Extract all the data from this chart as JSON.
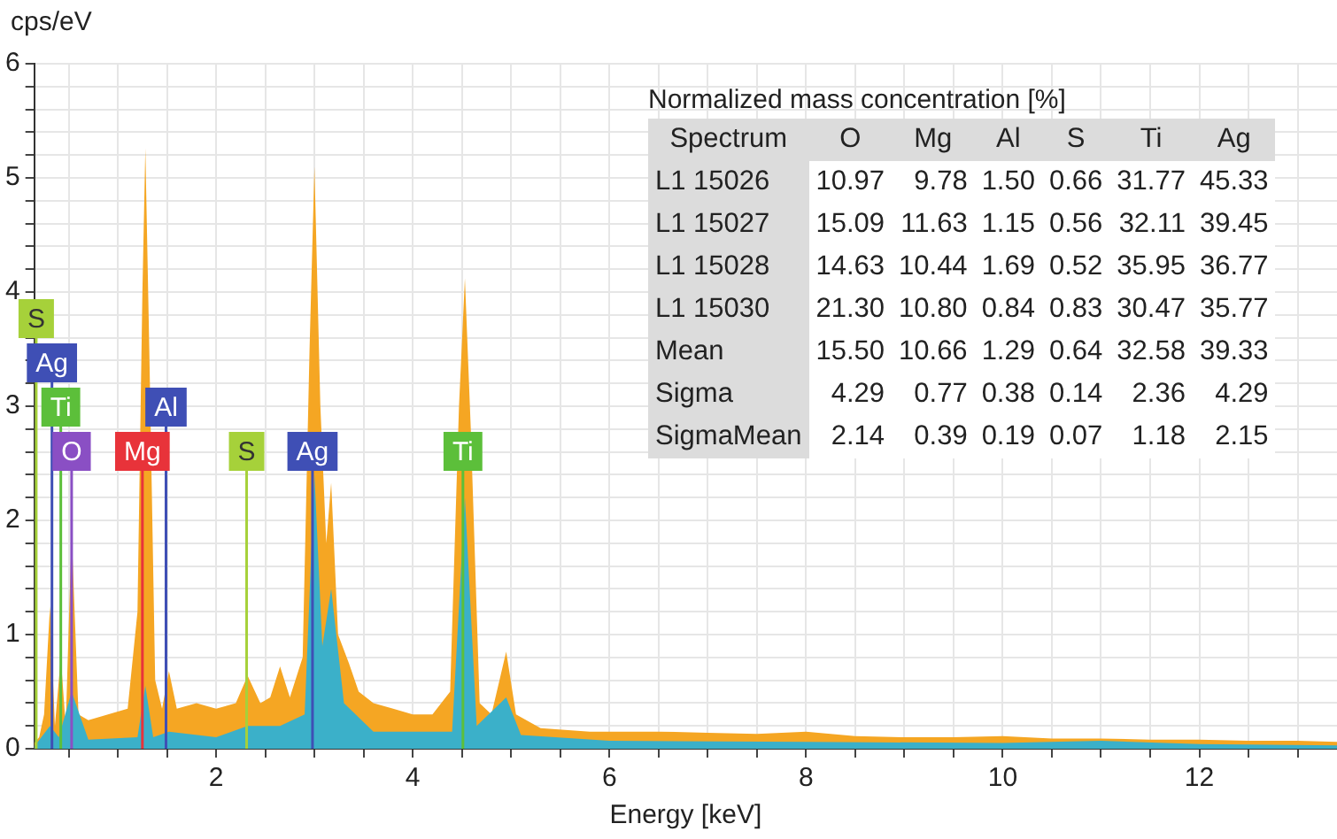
{
  "chart_data": [
    {
      "type": "area",
      "xlabel": "Energy [keV]",
      "ylabel": "cps/eV",
      "grid": true,
      "legend": false,
      "xlim": [
        0.15,
        13.4
      ],
      "ylim": [
        0,
        6
      ],
      "xticks": [
        {
          "value": 0.5,
          "label": null
        },
        {
          "value": 1,
          "label": null
        },
        {
          "value": 1.5,
          "label": null
        },
        2,
        {
          "value": 2.5,
          "label": null
        },
        {
          "value": 3,
          "label": null
        },
        {
          "value": 3.5,
          "label": null
        },
        4,
        {
          "value": 4.5,
          "label": null
        },
        {
          "value": 5,
          "label": null
        },
        {
          "value": 5.5,
          "label": null
        },
        6,
        {
          "value": 6.5,
          "label": null
        },
        {
          "value": 7,
          "label": null
        },
        {
          "value": 7.5,
          "label": null
        },
        8,
        {
          "value": 8.5,
          "label": null
        },
        {
          "value": 9,
          "label": null
        },
        {
          "value": 9.5,
          "label": null
        },
        10,
        {
          "value": 10.5,
          "label": null
        },
        {
          "value": 11,
          "label": null
        },
        {
          "value": 11.5,
          "label": null
        },
        12,
        {
          "value": 12.5,
          "label": null
        },
        {
          "value": 13,
          "label": null
        }
      ],
      "yticks": [
        0,
        {
          "value": 0.2,
          "label": null
        },
        {
          "value": 0.4,
          "label": null
        },
        {
          "value": 0.6,
          "label": null
        },
        {
          "value": 0.8,
          "label": null
        },
        1,
        {
          "value": 1.2,
          "label": null
        },
        {
          "value": 1.4,
          "label": null
        },
        {
          "value": 1.6,
          "label": null
        },
        {
          "value": 1.8,
          "label": null
        },
        2,
        {
          "value": 2.2,
          "label": null
        },
        {
          "value": 2.4,
          "label": null
        },
        {
          "value": 2.6,
          "label": null
        },
        {
          "value": 2.8,
          "label": null
        },
        3,
        {
          "value": 3.2,
          "label": null
        },
        {
          "value": 3.4,
          "label": null
        },
        {
          "value": 3.6,
          "label": null
        },
        {
          "value": 3.8,
          "label": null
        },
        4,
        {
          "value": 4.2,
          "label": null
        },
        {
          "value": 4.4,
          "label": null
        },
        {
          "value": 4.6,
          "label": null
        },
        {
          "value": 4.8,
          "label": null
        },
        5,
        {
          "value": 5.2,
          "label": null
        },
        {
          "value": 5.4,
          "label": null
        },
        {
          "value": 5.6,
          "label": null
        },
        {
          "value": 5.8,
          "label": null
        },
        6
      ],
      "series": [
        {
          "color": "#f5a623",
          "x": [
            0.15,
            0.2,
            0.25,
            0.31,
            0.36,
            0.42,
            0.47,
            0.53,
            0.6,
            0.7,
            0.9,
            1.1,
            1.2,
            1.25,
            1.28,
            1.32,
            1.38,
            1.45,
            1.52,
            1.6,
            1.8,
            2.0,
            2.2,
            2.32,
            2.45,
            2.55,
            2.65,
            2.75,
            2.88,
            2.95,
            3.0,
            3.06,
            3.12,
            3.17,
            3.24,
            3.35,
            3.45,
            3.6,
            3.8,
            4.0,
            4.2,
            4.38,
            4.47,
            4.53,
            4.59,
            4.68,
            4.8,
            4.95,
            5.05,
            5.3,
            5.8,
            6.5,
            7.0,
            7.5,
            8.0,
            8.5,
            9.0,
            9.5,
            10.0,
            10.5,
            11.0,
            11.5,
            12.0,
            12.5,
            13.0,
            13.4
          ],
          "values": [
            0.05,
            0.1,
            0.3,
            1.25,
            0.2,
            0.8,
            0.2,
            1.9,
            0.3,
            0.25,
            0.3,
            0.35,
            1.2,
            4.0,
            5.26,
            3.5,
            0.6,
            0.35,
            0.68,
            0.35,
            0.4,
            0.35,
            0.4,
            0.64,
            0.4,
            0.45,
            0.72,
            0.45,
            0.8,
            3.5,
            5.1,
            3.0,
            1.8,
            2.33,
            1.0,
            0.75,
            0.5,
            0.4,
            0.35,
            0.3,
            0.3,
            0.5,
            3.0,
            4.12,
            2.8,
            0.4,
            0.3,
            0.85,
            0.3,
            0.18,
            0.15,
            0.15,
            0.14,
            0.13,
            0.15,
            0.11,
            0.1,
            0.1,
            0.11,
            0.09,
            0.09,
            0.08,
            0.08,
            0.07,
            0.07,
            0.06
          ]
        },
        {
          "color": "#3bb0c9",
          "x": [
            0.15,
            0.31,
            0.4,
            0.53,
            0.7,
            1.2,
            1.28,
            1.36,
            1.52,
            2.0,
            2.32,
            2.65,
            2.9,
            3.0,
            3.08,
            3.17,
            3.3,
            3.6,
            4.4,
            4.53,
            4.65,
            4.95,
            5.1,
            6.0,
            8.0,
            10.0,
            11.0,
            12.0,
            13.4
          ],
          "values": [
            0.02,
            0.2,
            0.1,
            0.5,
            0.08,
            0.1,
            0.55,
            0.1,
            0.15,
            0.1,
            0.2,
            0.2,
            0.3,
            2.4,
            0.9,
            1.4,
            0.4,
            0.15,
            0.15,
            2.2,
            0.2,
            0.45,
            0.12,
            0.07,
            0.06,
            0.05,
            0.07,
            0.04,
            0.03
          ]
        }
      ],
      "ref_lines": [
        {
          "axis": "x",
          "value": 0.53,
          "label": "O",
          "color": "#8a4fc4"
        },
        {
          "axis": "x",
          "value": 1.25,
          "label": "Mg",
          "color": "#e8333a"
        },
        {
          "axis": "x",
          "value": 2.31,
          "label": "S",
          "color": "#a6d13a"
        },
        {
          "axis": "x",
          "value": 2.98,
          "label": "Ag",
          "color": "#3f4fb5"
        },
        {
          "axis": "x",
          "value": 4.51,
          "label": "Ti",
          "color": "#5cbf3a"
        },
        {
          "axis": "x",
          "value": 0.42,
          "label": "Ti",
          "color": "#5cbf3a"
        },
        {
          "axis": "x",
          "value": 1.49,
          "label": "Al",
          "color": "#3f4fb5"
        },
        {
          "axis": "x",
          "value": 0.33,
          "label": "Ag",
          "color": "#3f4fb5"
        },
        {
          "axis": "x",
          "value": 0.17,
          "label": "S",
          "color": "#a6d13a"
        }
      ]
    },
    {
      "type": "other",
      "title": "Normalized mass concentration [%]",
      "ylabel": "Spectrum",
      "categories": [
        "L1 15026",
        "L1 15027",
        "L1 15028",
        "L1 15030",
        "Mean",
        "Sigma",
        "SigmaMean"
      ],
      "series": [
        {
          "name": "O",
          "values": [
            10.97,
            15.09,
            14.63,
            21.3,
            15.5,
            4.29,
            2.14
          ],
          "value_labels": [
            "10.97",
            "15.09",
            "14.63",
            "21.30",
            "15.50",
            "4.29",
            "2.14"
          ]
        },
        {
          "name": "Mg",
          "values": [
            9.78,
            11.63,
            10.44,
            10.8,
            10.66,
            0.77,
            0.39
          ],
          "value_labels": [
            "9.78",
            "11.63",
            "10.44",
            "10.80",
            "10.66",
            "0.77",
            "0.39"
          ]
        },
        {
          "name": "Al",
          "values": [
            1.5,
            1.15,
            1.69,
            0.84,
            1.29,
            0.38,
            0.19
          ],
          "value_labels": [
            "1.50",
            "1.15",
            "1.69",
            "0.84",
            "1.29",
            "0.38",
            "0.19"
          ]
        },
        {
          "name": "S",
          "values": [
            0.66,
            0.56,
            0.52,
            0.83,
            0.64,
            0.14,
            0.07
          ],
          "value_labels": [
            "0.66",
            "0.56",
            "0.52",
            "0.83",
            "0.64",
            "0.14",
            "0.07"
          ]
        },
        {
          "name": "Ti",
          "values": [
            31.77,
            32.11,
            35.95,
            30.47,
            32.58,
            2.36,
            1.18
          ],
          "value_labels": [
            "31.77",
            "32.11",
            "35.95",
            "30.47",
            "32.58",
            "2.36",
            "1.18"
          ]
        },
        {
          "name": "Ag",
          "values": [
            45.33,
            39.45,
            36.77,
            35.77,
            39.33,
            4.29,
            2.15
          ],
          "value_labels": [
            "45.33",
            "39.45",
            "36.77",
            "35.77",
            "39.33",
            "4.29",
            "2.15"
          ]
        }
      ]
    }
  ]
}
